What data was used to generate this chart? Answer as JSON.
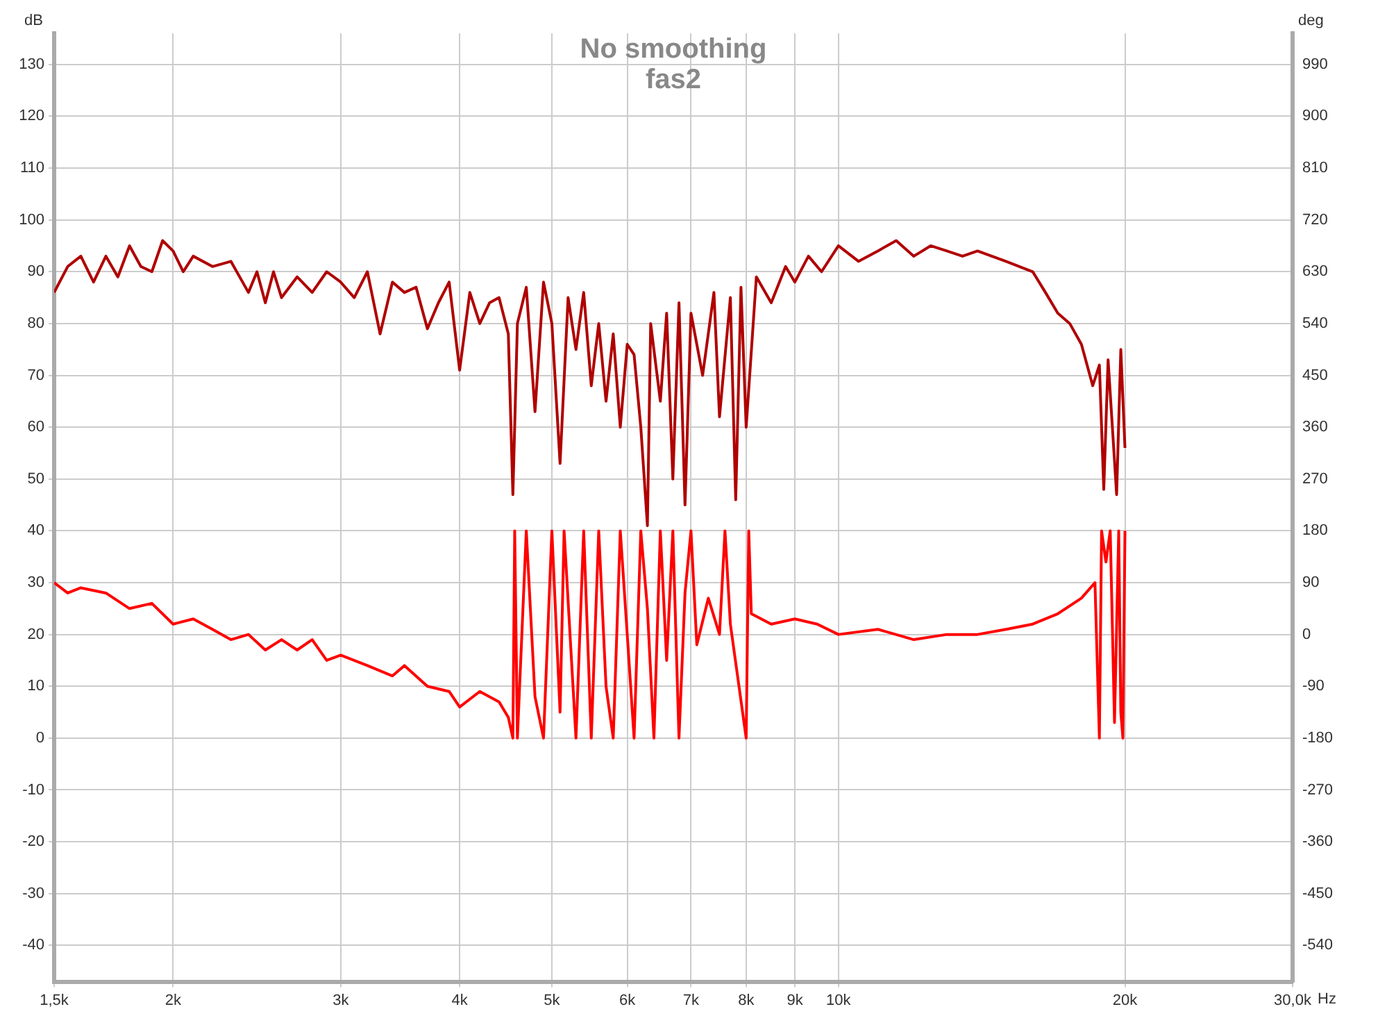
{
  "chart_data": {
    "type": "line",
    "title": "No smoothing",
    "subtitle": "fas2",
    "xlabel": "Hz",
    "ylabel": "dB",
    "y2label": "deg",
    "xlim": [
      1500,
      30000
    ],
    "xticks": [
      {
        "value": 1500,
        "label": "1,5k"
      },
      {
        "value": 2000,
        "label": "2k"
      },
      {
        "value": 3000,
        "label": "3k"
      },
      {
        "value": 4000,
        "label": "4k"
      },
      {
        "value": 5000,
        "label": "5k"
      },
      {
        "value": 6000,
        "label": "6k"
      },
      {
        "value": 7000,
        "label": "7k"
      },
      {
        "value": 8000,
        "label": "8k"
      },
      {
        "value": 9000,
        "label": "9k"
      },
      {
        "value": 10000,
        "label": "10k"
      },
      {
        "value": 20000,
        "label": "20k"
      },
      {
        "value": 30000,
        "label": "30,0k"
      }
    ],
    "ylim": [
      -47,
      136
    ],
    "yticks": [
      -40,
      -30,
      -20,
      -10,
      0,
      10,
      20,
      30,
      40,
      50,
      60,
      70,
      80,
      90,
      100,
      110,
      120,
      130
    ],
    "y2lim": [
      -603,
      1044
    ],
    "y2ticks": [
      -540,
      -450,
      -360,
      -270,
      -180,
      -90,
      0,
      90,
      180,
      270,
      360,
      450,
      540,
      630,
      720,
      810,
      900,
      990
    ],
    "log": "x",
    "grid": true,
    "legend": false,
    "marker": "none",
    "line_style": "solid",
    "series": [
      {
        "color": "#b00000",
        "x": [
          1500,
          1550,
          1600,
          1650,
          1700,
          1750,
          1800,
          1850,
          1900,
          1950,
          2000,
          2050,
          2100,
          2200,
          2300,
          2400,
          2450,
          2500,
          2550,
          2600,
          2700,
          2800,
          2900,
          3000,
          3100,
          3200,
          3300,
          3400,
          3500,
          3600,
          3700,
          3800,
          3900,
          4000,
          4100,
          4200,
          4300,
          4400,
          4500,
          4550,
          4600,
          4700,
          4800,
          4900,
          5000,
          5100,
          5200,
          5300,
          5400,
          5500,
          5600,
          5700,
          5800,
          5900,
          6000,
          6100,
          6200,
          6300,
          6350,
          6500,
          6600,
          6700,
          6800,
          6900,
          7000,
          7200,
          7400,
          7500,
          7700,
          7800,
          7900,
          8000,
          8200,
          8500,
          8800,
          9000,
          9300,
          9600,
          10000,
          10500,
          11000,
          11500,
          12000,
          12500,
          13000,
          13500,
          14000,
          15000,
          16000,
          16500,
          17000,
          17500,
          18000,
          18500,
          18800,
          19000,
          19200,
          19400,
          19600,
          19800,
          20000
        ],
        "values": [
          86,
          91,
          93,
          88,
          93,
          89,
          95,
          91,
          90,
          96,
          94,
          90,
          93,
          91,
          92,
          86,
          90,
          84,
          90,
          85,
          89,
          86,
          90,
          88,
          85,
          90,
          78,
          88,
          86,
          87,
          79,
          84,
          88,
          71,
          86,
          80,
          84,
          85,
          78,
          47,
          80,
          87,
          63,
          88,
          80,
          53,
          85,
          75,
          86,
          68,
          80,
          65,
          78,
          60,
          76,
          74,
          60,
          41,
          80,
          65,
          82,
          50,
          84,
          45,
          82,
          70,
          86,
          62,
          85,
          46,
          87,
          60,
          89,
          84,
          91,
          88,
          93,
          90,
          95,
          92,
          94,
          96,
          93,
          95,
          94,
          93,
          94,
          92,
          90,
          86,
          82,
          80,
          76,
          68,
          72,
          48,
          73,
          60,
          47,
          75,
          56
        ]
      },
      {
        "color": "#ff0000",
        "axis": "y2",
        "x": [
          1500,
          1550,
          1600,
          1700,
          1800,
          1900,
          2000,
          2100,
          2200,
          2300,
          2400,
          2500,
          2600,
          2700,
          2800,
          2900,
          3000,
          3200,
          3400,
          3500,
          3700,
          3900,
          4000,
          4200,
          4400,
          4500,
          4550,
          4570,
          4600,
          4700,
          4800,
          4900,
          5000,
          5100,
          5150,
          5300,
          5400,
          5500,
          5600,
          5700,
          5800,
          5900,
          6000,
          6100,
          6200,
          6300,
          6400,
          6500,
          6600,
          6700,
          6800,
          6900,
          7000,
          7100,
          7300,
          7500,
          7600,
          7700,
          8000,
          8050,
          8100,
          8500,
          9000,
          9500,
          10000,
          11000,
          12000,
          13000,
          14000,
          15000,
          16000,
          17000,
          18000,
          18600,
          18800,
          18900,
          19100,
          19300,
          19500,
          19700,
          19800,
          19900,
          20000
        ],
        "values": [
          90,
          72,
          81,
          72,
          45,
          54,
          18,
          27,
          9,
          -9,
          0,
          -27,
          -9,
          -27,
          -9,
          -45,
          -36,
          -54,
          -72,
          -54,
          -90,
          -99,
          -126,
          -99,
          -117,
          -144,
          -180,
          180,
          -180,
          180,
          -108,
          -180,
          180,
          -135,
          180,
          -180,
          180,
          -180,
          180,
          -90,
          -180,
          180,
          0,
          -180,
          180,
          45,
          -180,
          180,
          -45,
          180,
          -180,
          72,
          180,
          -18,
          63,
          0,
          180,
          18,
          -180,
          180,
          36,
          18,
          27,
          18,
          0,
          9,
          -9,
          0,
          0,
          9,
          18,
          36,
          63,
          90,
          -180,
          180,
          126,
          180,
          -153,
          180,
          -135,
          -180,
          180
        ]
      }
    ]
  }
}
